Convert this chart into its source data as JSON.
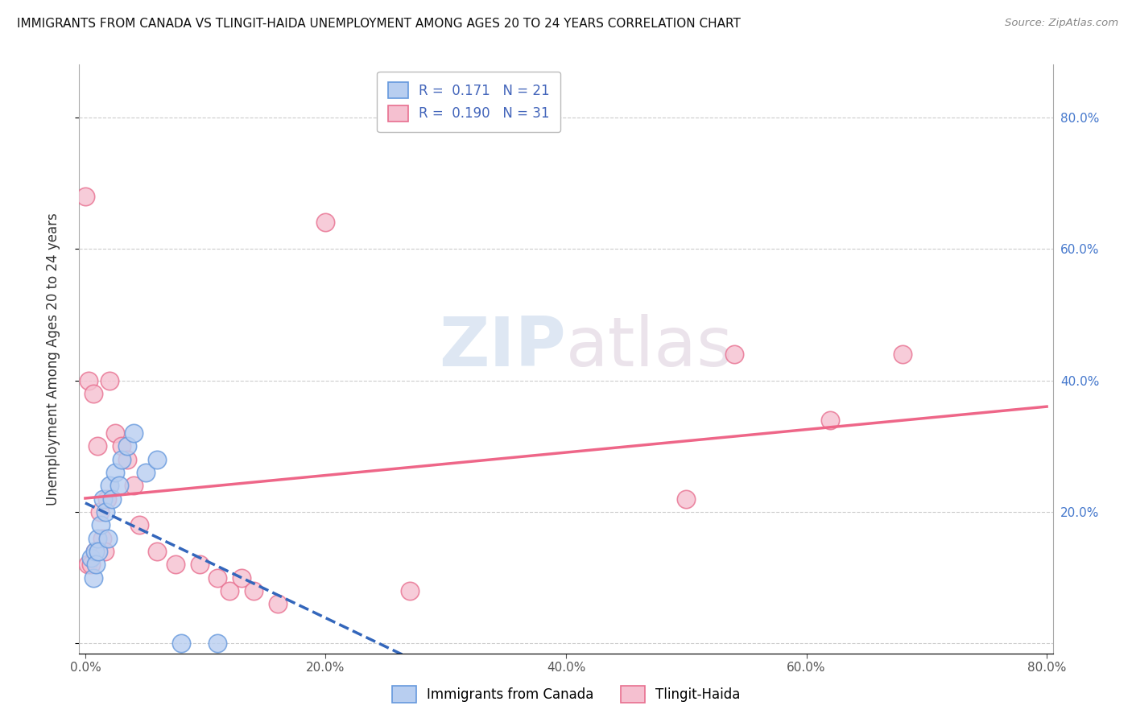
{
  "title": "IMMIGRANTS FROM CANADA VS TLINGIT-HAIDA UNEMPLOYMENT AMONG AGES 20 TO 24 YEARS CORRELATION CHART",
  "source": "Source: ZipAtlas.com",
  "ylabel": "Unemployment Among Ages 20 to 24 years",
  "legend_label1": "Immigrants from Canada",
  "legend_label2": "Tlingit-Haida",
  "r1": "0.171",
  "n1": "21",
  "r2": "0.190",
  "n2": "31",
  "blue_face_color": "#b8cef0",
  "blue_edge_color": "#6699dd",
  "pink_face_color": "#f5c0d0",
  "pink_edge_color": "#e87090",
  "blue_line_color": "#3366bb",
  "pink_line_color": "#ee6688",
  "grid_color": "#cccccc",
  "blue_x": [
    0.005,
    0.007,
    0.008,
    0.009,
    0.01,
    0.011,
    0.013,
    0.015,
    0.017,
    0.019,
    0.02,
    0.022,
    0.025,
    0.028,
    0.03,
    0.035,
    0.04,
    0.05,
    0.06,
    0.08,
    0.11
  ],
  "blue_y": [
    0.13,
    0.1,
    0.14,
    0.12,
    0.16,
    0.14,
    0.18,
    0.22,
    0.2,
    0.16,
    0.24,
    0.22,
    0.26,
    0.24,
    0.28,
    0.3,
    0.32,
    0.26,
    0.28,
    0.0,
    0.0
  ],
  "pink_x": [
    0.0,
    0.002,
    0.003,
    0.005,
    0.007,
    0.008,
    0.01,
    0.012,
    0.014,
    0.016,
    0.018,
    0.02,
    0.025,
    0.03,
    0.035,
    0.04,
    0.045,
    0.06,
    0.075,
    0.095,
    0.11,
    0.12,
    0.13,
    0.14,
    0.16,
    0.2,
    0.27,
    0.5,
    0.54,
    0.62,
    0.68
  ],
  "pink_y": [
    0.68,
    0.12,
    0.4,
    0.12,
    0.38,
    0.14,
    0.3,
    0.2,
    0.16,
    0.14,
    0.22,
    0.4,
    0.32,
    0.3,
    0.28,
    0.24,
    0.18,
    0.14,
    0.12,
    0.12,
    0.1,
    0.08,
    0.1,
    0.08,
    0.06,
    0.64,
    0.08,
    0.22,
    0.44,
    0.34,
    0.44
  ],
  "xmin": -0.005,
  "xmax": 0.805,
  "ymin": -0.015,
  "ymax": 0.88,
  "yticks": [
    0.0,
    0.2,
    0.4,
    0.6,
    0.8
  ],
  "xtick_positions": [
    0.0,
    0.2,
    0.4,
    0.6,
    0.8
  ],
  "xtick_labels": [
    "0.0%",
    "20.0%",
    "40.0%",
    "60.0%",
    "80.0%"
  ],
  "right_ytick_labels": [
    "",
    "20.0%",
    "40.0%",
    "60.0%",
    "80.0%"
  ]
}
